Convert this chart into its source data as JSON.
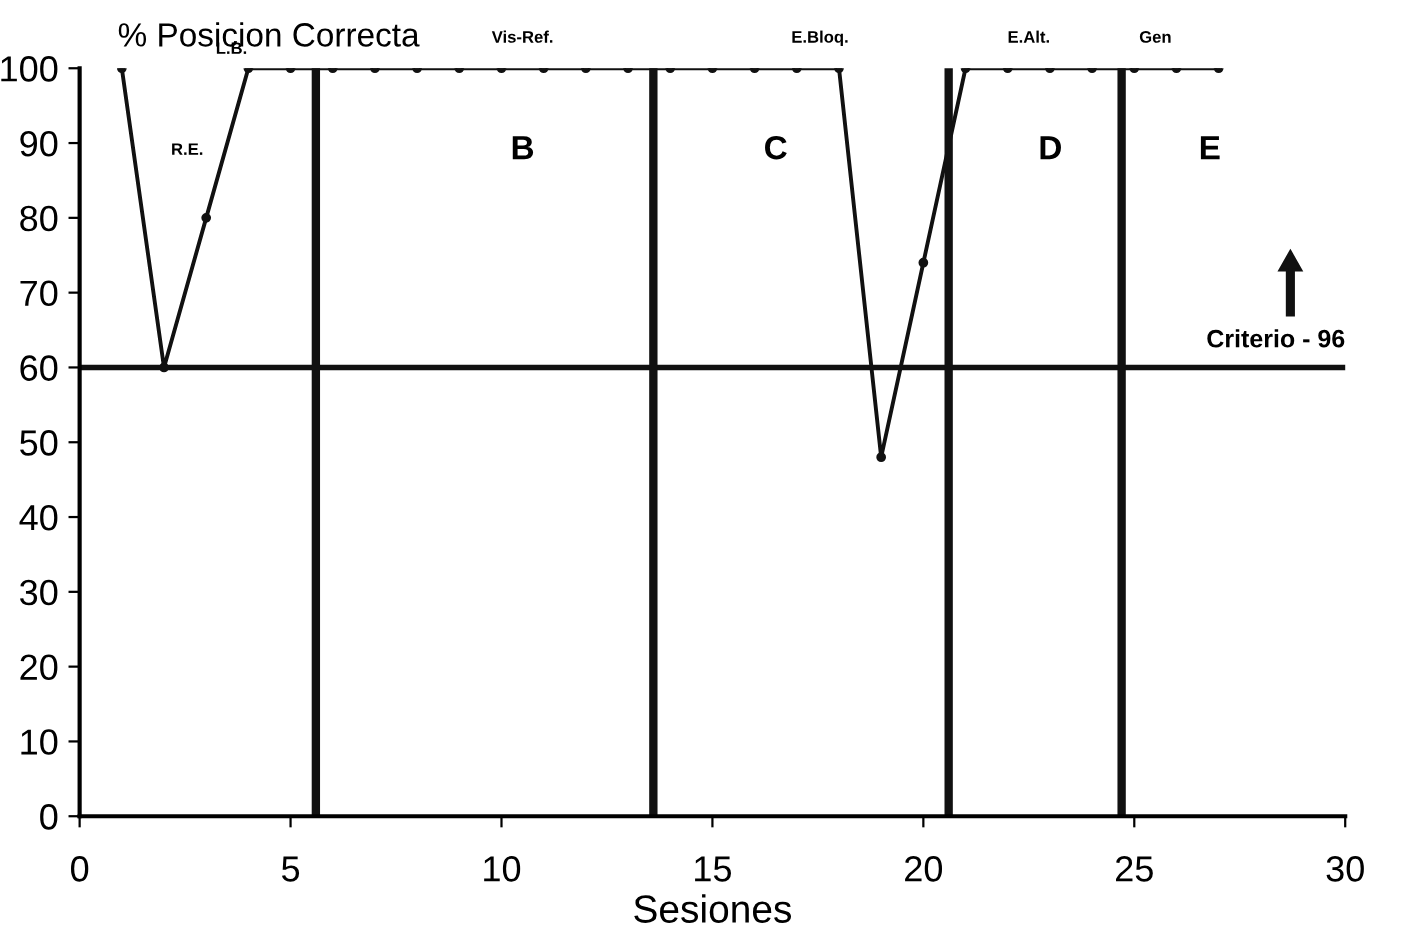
{
  "chart_data": {
    "type": "line",
    "title": "% Posicion Correcta",
    "xlabel": "Sesiones",
    "x": [
      1,
      2,
      3,
      4,
      5,
      6,
      7,
      8,
      9,
      10,
      11,
      12,
      13,
      14,
      15,
      16,
      17,
      18,
      19,
      20,
      21,
      22,
      23,
      24,
      25,
      26,
      27
    ],
    "series": [
      {
        "color": "#111111",
        "values": [
          100,
          60,
          80,
          100,
          100,
          100,
          100,
          100,
          100,
          100,
          100,
          100,
          100,
          100,
          100,
          100,
          100,
          100,
          48,
          74,
          100,
          100,
          100,
          100,
          100,
          100,
          100
        ]
      }
    ],
    "xlim": [
      0,
      30
    ],
    "ylim": [
      0,
      100
    ],
    "xticks": [
      0,
      5,
      10,
      15,
      20,
      25,
      30
    ],
    "yticks": [
      0,
      10,
      20,
      30,
      40,
      50,
      60,
      70,
      80,
      90,
      100
    ],
    "marker": "circle",
    "line_style": "solid",
    "grid": false,
    "legend": false,
    "ref_lines": [
      {
        "axis": "y",
        "value": 60,
        "label": "Criterio - 96"
      },
      {
        "axis": "x",
        "value": 5.6,
        "label": null
      },
      {
        "axis": "x",
        "value": 13.6,
        "label": null
      },
      {
        "axis": "x",
        "value": 20.6,
        "label": null
      },
      {
        "axis": "x",
        "value": 24.7,
        "label": null
      }
    ],
    "annotations": [
      "L.B.",
      "R.E.",
      "Vis-Ref.",
      "E.Bloq.",
      "E.Alt.",
      "Gen",
      "B",
      "C",
      "D",
      "E"
    ]
  }
}
